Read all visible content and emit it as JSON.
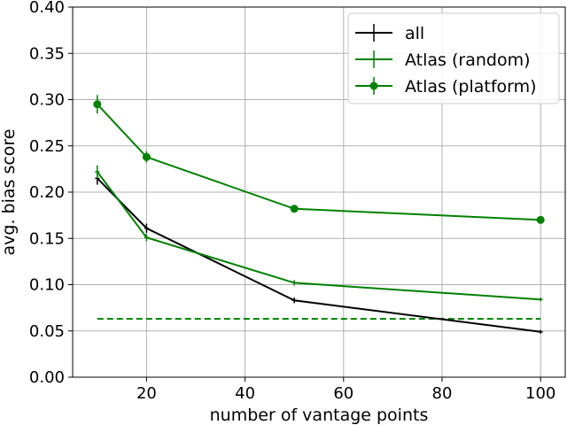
{
  "chart_data": {
    "type": "line",
    "xlabel": "number of vantage points",
    "ylabel": "avg. bias score",
    "xlim": [
      5,
      105
    ],
    "ylim": [
      0.0,
      0.4
    ],
    "xticks": [
      20,
      40,
      60,
      80,
      100
    ],
    "xtick_labels": [
      "20",
      "40",
      "60",
      "80",
      "100"
    ],
    "yticks": [
      0.0,
      0.05,
      0.1,
      0.15,
      0.2,
      0.25,
      0.3,
      0.35,
      0.4
    ],
    "ytick_labels": [
      "0.00",
      "0.05",
      "0.10",
      "0.15",
      "0.20",
      "0.25",
      "0.30",
      "0.35",
      "0.40"
    ],
    "grid": true,
    "legend_position": "top-right",
    "series": [
      {
        "name": "all",
        "color": "#000000",
        "marker": "errorbar",
        "x": [
          10,
          20,
          50,
          100
        ],
        "y": [
          0.215,
          0.161,
          0.083,
          0.049
        ],
        "err": [
          0.007,
          0.005,
          0.003,
          0.002
        ]
      },
      {
        "name": "Atlas (random)",
        "color": "#008000",
        "marker": "errorbar",
        "x": [
          10,
          20,
          50,
          100
        ],
        "y": [
          0.222,
          0.151,
          0.102,
          0.084
        ],
        "err": [
          0.007,
          0.004,
          0.003,
          0.002
        ]
      },
      {
        "name": "Atlas (platform)",
        "color": "#008000",
        "marker": "circle",
        "x": [
          10,
          20,
          50,
          100
        ],
        "y": [
          0.295,
          0.238,
          0.182,
          0.17
        ],
        "err": [
          0.01,
          0.006,
          0.003,
          0.003
        ]
      }
    ],
    "reference_line": {
      "color": "#008000",
      "style": "dashed",
      "y": 0.063,
      "x_range": [
        10,
        100
      ]
    }
  }
}
